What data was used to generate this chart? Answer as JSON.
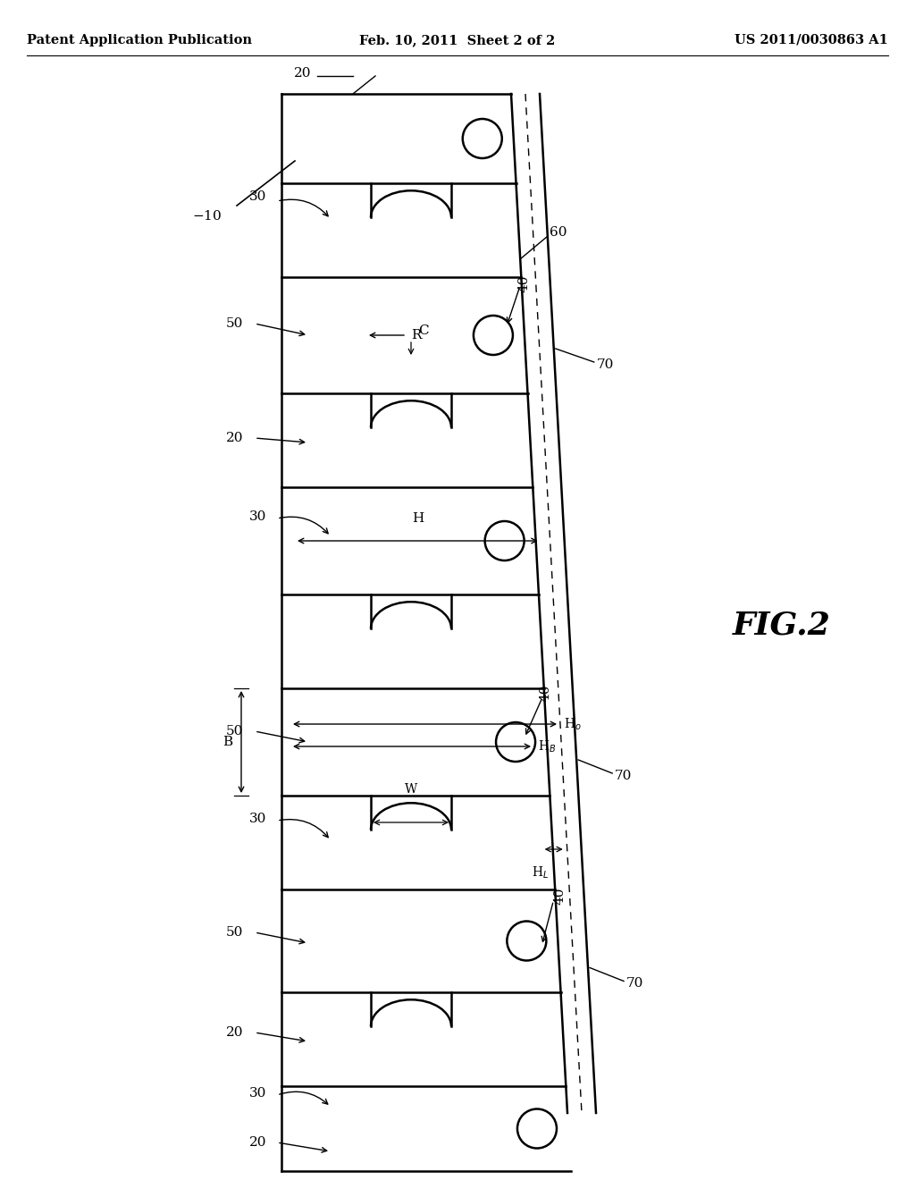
{
  "header_left": "Patent Application Publication",
  "header_center": "Feb. 10, 2011  Sheet 2 of 2",
  "header_right": "US 2011/0030863 A1",
  "fig_label": "FIG.2",
  "bg_color": "#ffffff",
  "line_color": "#000000",
  "header_font_size": 10.5,
  "fig_label_font_size": 26,
  "lw_main": 1.8,
  "lw_thin": 1.0,
  "lw_dashed": 1.0
}
